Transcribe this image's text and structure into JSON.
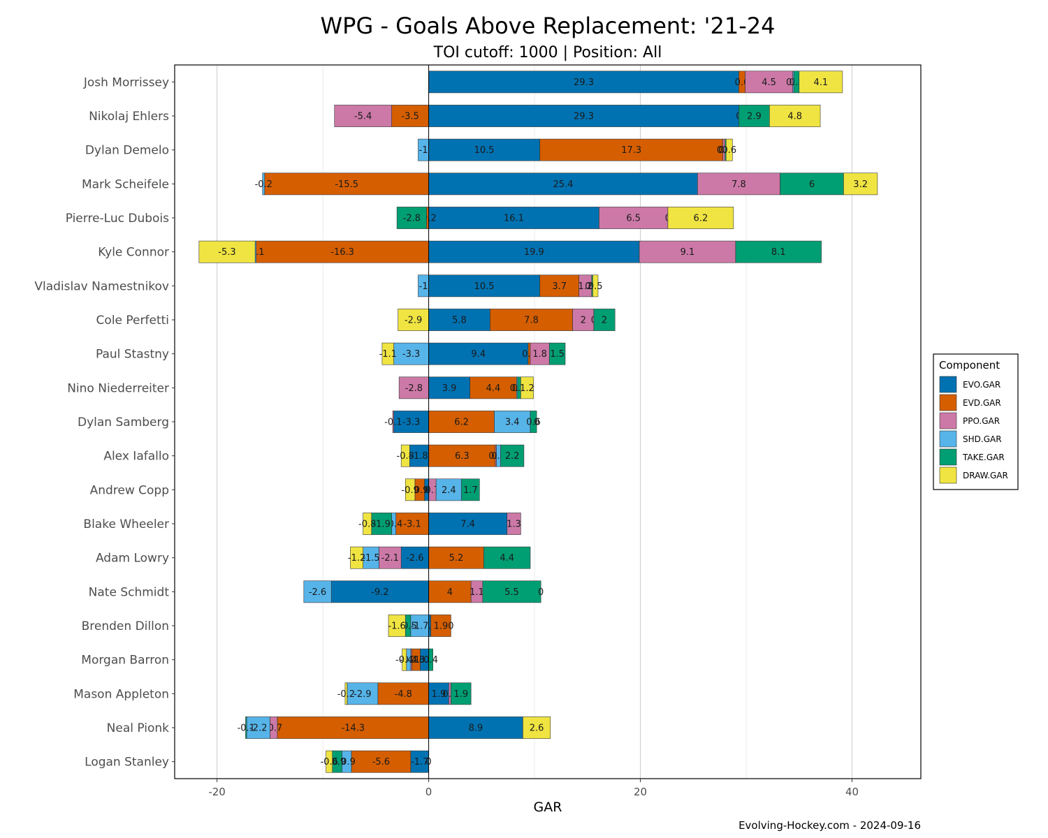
{
  "title": "WPG - Goals Above Replacement: '21-24",
  "subtitle": "TOI cutoff: 1000 | Position: All",
  "caption": "Evolving-Hockey.com - 2024-09-16",
  "chart_data": {
    "type": "bar",
    "orientation": "horizontal",
    "stacked": "diverging",
    "xlabel": "GAR",
    "ylabel": "",
    "xlim": [
      -24,
      46.5
    ],
    "xticks": [
      -20,
      0,
      20,
      40
    ],
    "grid": true,
    "legend": {
      "title": "Component",
      "position": "right",
      "entries": [
        "EVO.GAR",
        "EVD.GAR",
        "PPO.GAR",
        "SHD.GAR",
        "TAKE.GAR",
        "DRAW.GAR"
      ]
    },
    "colors": {
      "EVO.GAR": "#0072B2",
      "EVD.GAR": "#D55E00",
      "PPO.GAR": "#CC79A7",
      "SHD.GAR": "#56B4E9",
      "TAKE.GAR": "#009E73",
      "DRAW.GAR": "#F0E442"
    },
    "players": [
      {
        "name": "Josh Morrissey",
        "EVO.GAR": 29.3,
        "EVD.GAR": 0.6,
        "PPO.GAR": 4.5,
        "SHD.GAR": 0.1,
        "TAKE.GAR": 0.5,
        "DRAW.GAR": 4.1
      },
      {
        "name": "Nikolaj Ehlers",
        "EVO.GAR": 29.3,
        "EVD.GAR": -3.5,
        "PPO.GAR": -5.4,
        "SHD.GAR": 0,
        "TAKE.GAR": 2.9,
        "DRAW.GAR": 4.8
      },
      {
        "name": "Dylan Demelo",
        "EVO.GAR": 10.5,
        "EVD.GAR": 17.3,
        "PPO.GAR": 0.2,
        "SHD.GAR": -1,
        "TAKE.GAR": 0.1,
        "DRAW.GAR": 0.6
      },
      {
        "name": "Mark Scheifele",
        "EVO.GAR": 25.4,
        "EVD.GAR": -15.5,
        "PPO.GAR": 7.8,
        "SHD.GAR": -0.2,
        "TAKE.GAR": 6,
        "DRAW.GAR": 3.2
      },
      {
        "name": "Pierre-Luc Dubois",
        "EVO.GAR": 16.1,
        "EVD.GAR": -0.2,
        "PPO.GAR": 6.5,
        "SHD.GAR": 0,
        "TAKE.GAR": -2.8,
        "DRAW.GAR": 6.2
      },
      {
        "name": "Kyle Connor",
        "EVO.GAR": 19.9,
        "EVD.GAR": -16.3,
        "PPO.GAR": 9.1,
        "SHD.GAR": -0.1,
        "TAKE.GAR": 8.1,
        "DRAW.GAR": -5.3
      },
      {
        "name": "Vladislav Namestnikov",
        "EVO.GAR": 10.5,
        "EVD.GAR": 3.7,
        "PPO.GAR": 1.2,
        "SHD.GAR": -1,
        "TAKE.GAR": 0.1,
        "DRAW.GAR": 0.5
      },
      {
        "name": "Cole Perfetti",
        "EVO.GAR": 5.8,
        "EVD.GAR": 7.8,
        "PPO.GAR": 2,
        "SHD.GAR": 0,
        "TAKE.GAR": 2,
        "DRAW.GAR": -2.9
      },
      {
        "name": "Paul Stastny",
        "EVO.GAR": 9.4,
        "EVD.GAR": 0.2,
        "PPO.GAR": 1.8,
        "SHD.GAR": -3.3,
        "TAKE.GAR": 1.5,
        "DRAW.GAR": -1.1
      },
      {
        "name": "Nino Niederreiter",
        "EVO.GAR": 3.9,
        "EVD.GAR": 4.4,
        "PPO.GAR": -2.8,
        "SHD.GAR": 0.1,
        "TAKE.GAR": 0.3,
        "DRAW.GAR": 1.2
      },
      {
        "name": "Dylan Samberg",
        "EVO.GAR": -3.3,
        "EVD.GAR": 6.2,
        "PPO.GAR": -0.1,
        "SHD.GAR": 3.4,
        "TAKE.GAR": 0.6,
        "DRAW.GAR": 0
      },
      {
        "name": "Alex Iafallo",
        "EVO.GAR": -1.8,
        "EVD.GAR": 6.3,
        "PPO.GAR": 0.1,
        "SHD.GAR": 0.4,
        "TAKE.GAR": 2.2,
        "DRAW.GAR": -0.8
      },
      {
        "name": "Andrew Copp",
        "EVO.GAR": -0.4,
        "EVD.GAR": -0.9,
        "PPO.GAR": 0.7,
        "SHD.GAR": 2.4,
        "TAKE.GAR": 1.7,
        "DRAW.GAR": -0.9
      },
      {
        "name": "Blake Wheeler",
        "EVO.GAR": 7.4,
        "EVD.GAR": -3.1,
        "PPO.GAR": 1.3,
        "SHD.GAR": -0.4,
        "TAKE.GAR": -1.9,
        "DRAW.GAR": -0.8
      },
      {
        "name": "Adam Lowry",
        "EVO.GAR": -2.6,
        "EVD.GAR": 5.2,
        "PPO.GAR": -2.1,
        "SHD.GAR": -1.5,
        "TAKE.GAR": 4.4,
        "DRAW.GAR": -1.2
      },
      {
        "name": "Nate Schmidt",
        "EVO.GAR": -9.2,
        "EVD.GAR": 4,
        "PPO.GAR": 1.1,
        "SHD.GAR": -2.6,
        "TAKE.GAR": 5.5,
        "DRAW.GAR": 0
      },
      {
        "name": "Brenden Dillon",
        "EVO.GAR": 0.2,
        "EVD.GAR": 1.9,
        "PPO.GAR": 0,
        "SHD.GAR": -1.7,
        "TAKE.GAR": -0.5,
        "DRAW.GAR": -1.6
      },
      {
        "name": "Morgan Barron",
        "EVO.GAR": -0.8,
        "EVD.GAR": -0.8,
        "PPO.GAR": -0.1,
        "SHD.GAR": -0.4,
        "TAKE.GAR": 0.4,
        "DRAW.GAR": -0.4
      },
      {
        "name": "Mason Appleton",
        "EVO.GAR": 1.9,
        "EVD.GAR": -4.8,
        "PPO.GAR": 0.2,
        "SHD.GAR": -2.9,
        "TAKE.GAR": 1.9,
        "DRAW.GAR": -0.2
      },
      {
        "name": "Neal Pionk",
        "EVO.GAR": 8.9,
        "EVD.GAR": -14.3,
        "PPO.GAR": -0.7,
        "SHD.GAR": -2.2,
        "TAKE.GAR": -0.1,
        "DRAW.GAR": 2.6
      },
      {
        "name": "Logan Stanley",
        "EVO.GAR": -1.7,
        "EVD.GAR": -5.6,
        "PPO.GAR": 0,
        "SHD.GAR": -0.9,
        "TAKE.GAR": -0.9,
        "DRAW.GAR": -0.6
      }
    ]
  }
}
